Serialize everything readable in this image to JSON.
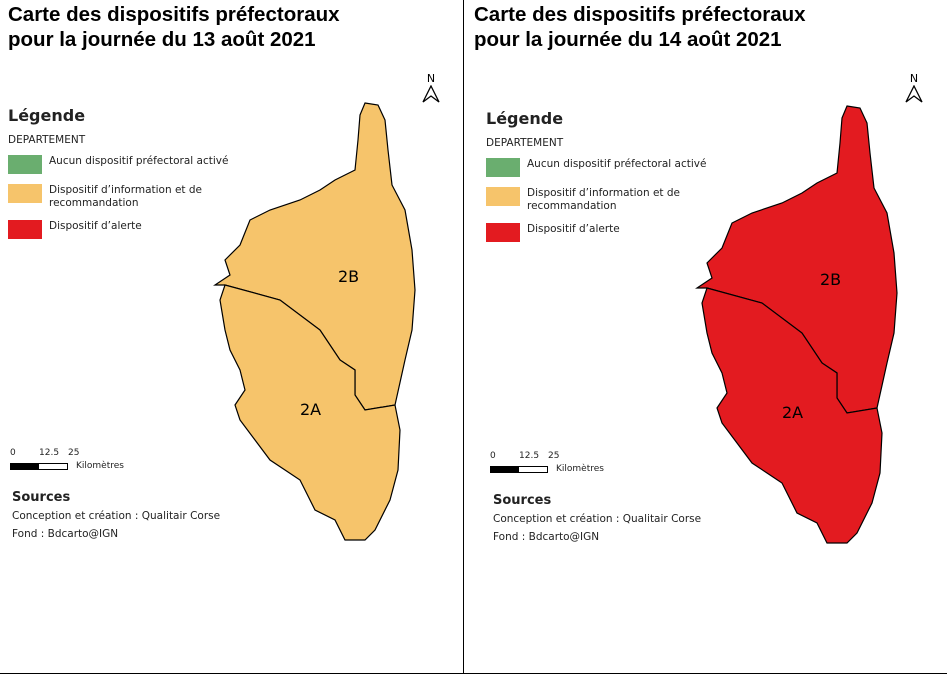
{
  "colors": {
    "none": "#6aae6f",
    "info": "#f6c46b",
    "alert": "#e31b20"
  },
  "legend": {
    "title": "Légende",
    "subtitle": "DEPARTEMENT",
    "items": [
      "Aucun dispositif préfectoral activé",
      "Dispositif d’information et de recommandation",
      "Dispositif d’alerte"
    ]
  },
  "scale": {
    "ticks": [
      "0",
      "12.5",
      "25"
    ],
    "unit": "Kilomètres"
  },
  "sources": {
    "title": "Sources",
    "lines": [
      "Conception et création : Qualitair Corse",
      "Fond : Bdcarto@IGN"
    ]
  },
  "north": "N",
  "maps": [
    {
      "title_l1": "Carte des dispositifs préfectoraux",
      "title_l2": "pour la journée du 13 août 2021",
      "departments": [
        {
          "code": "2B",
          "level": "Dispositif d’information et de recommandation"
        },
        {
          "code": "2A",
          "level": "Dispositif d’information et de recommandation"
        }
      ]
    },
    {
      "title_l1": "Carte des dispositifs préfectoraux",
      "title_l2": "pour la journée du 14 août 2021",
      "departments": [
        {
          "code": "2B",
          "level": "Dispositif d’alerte"
        },
        {
          "code": "2A",
          "level": "Dispositif d’alerte"
        }
      ]
    }
  ]
}
